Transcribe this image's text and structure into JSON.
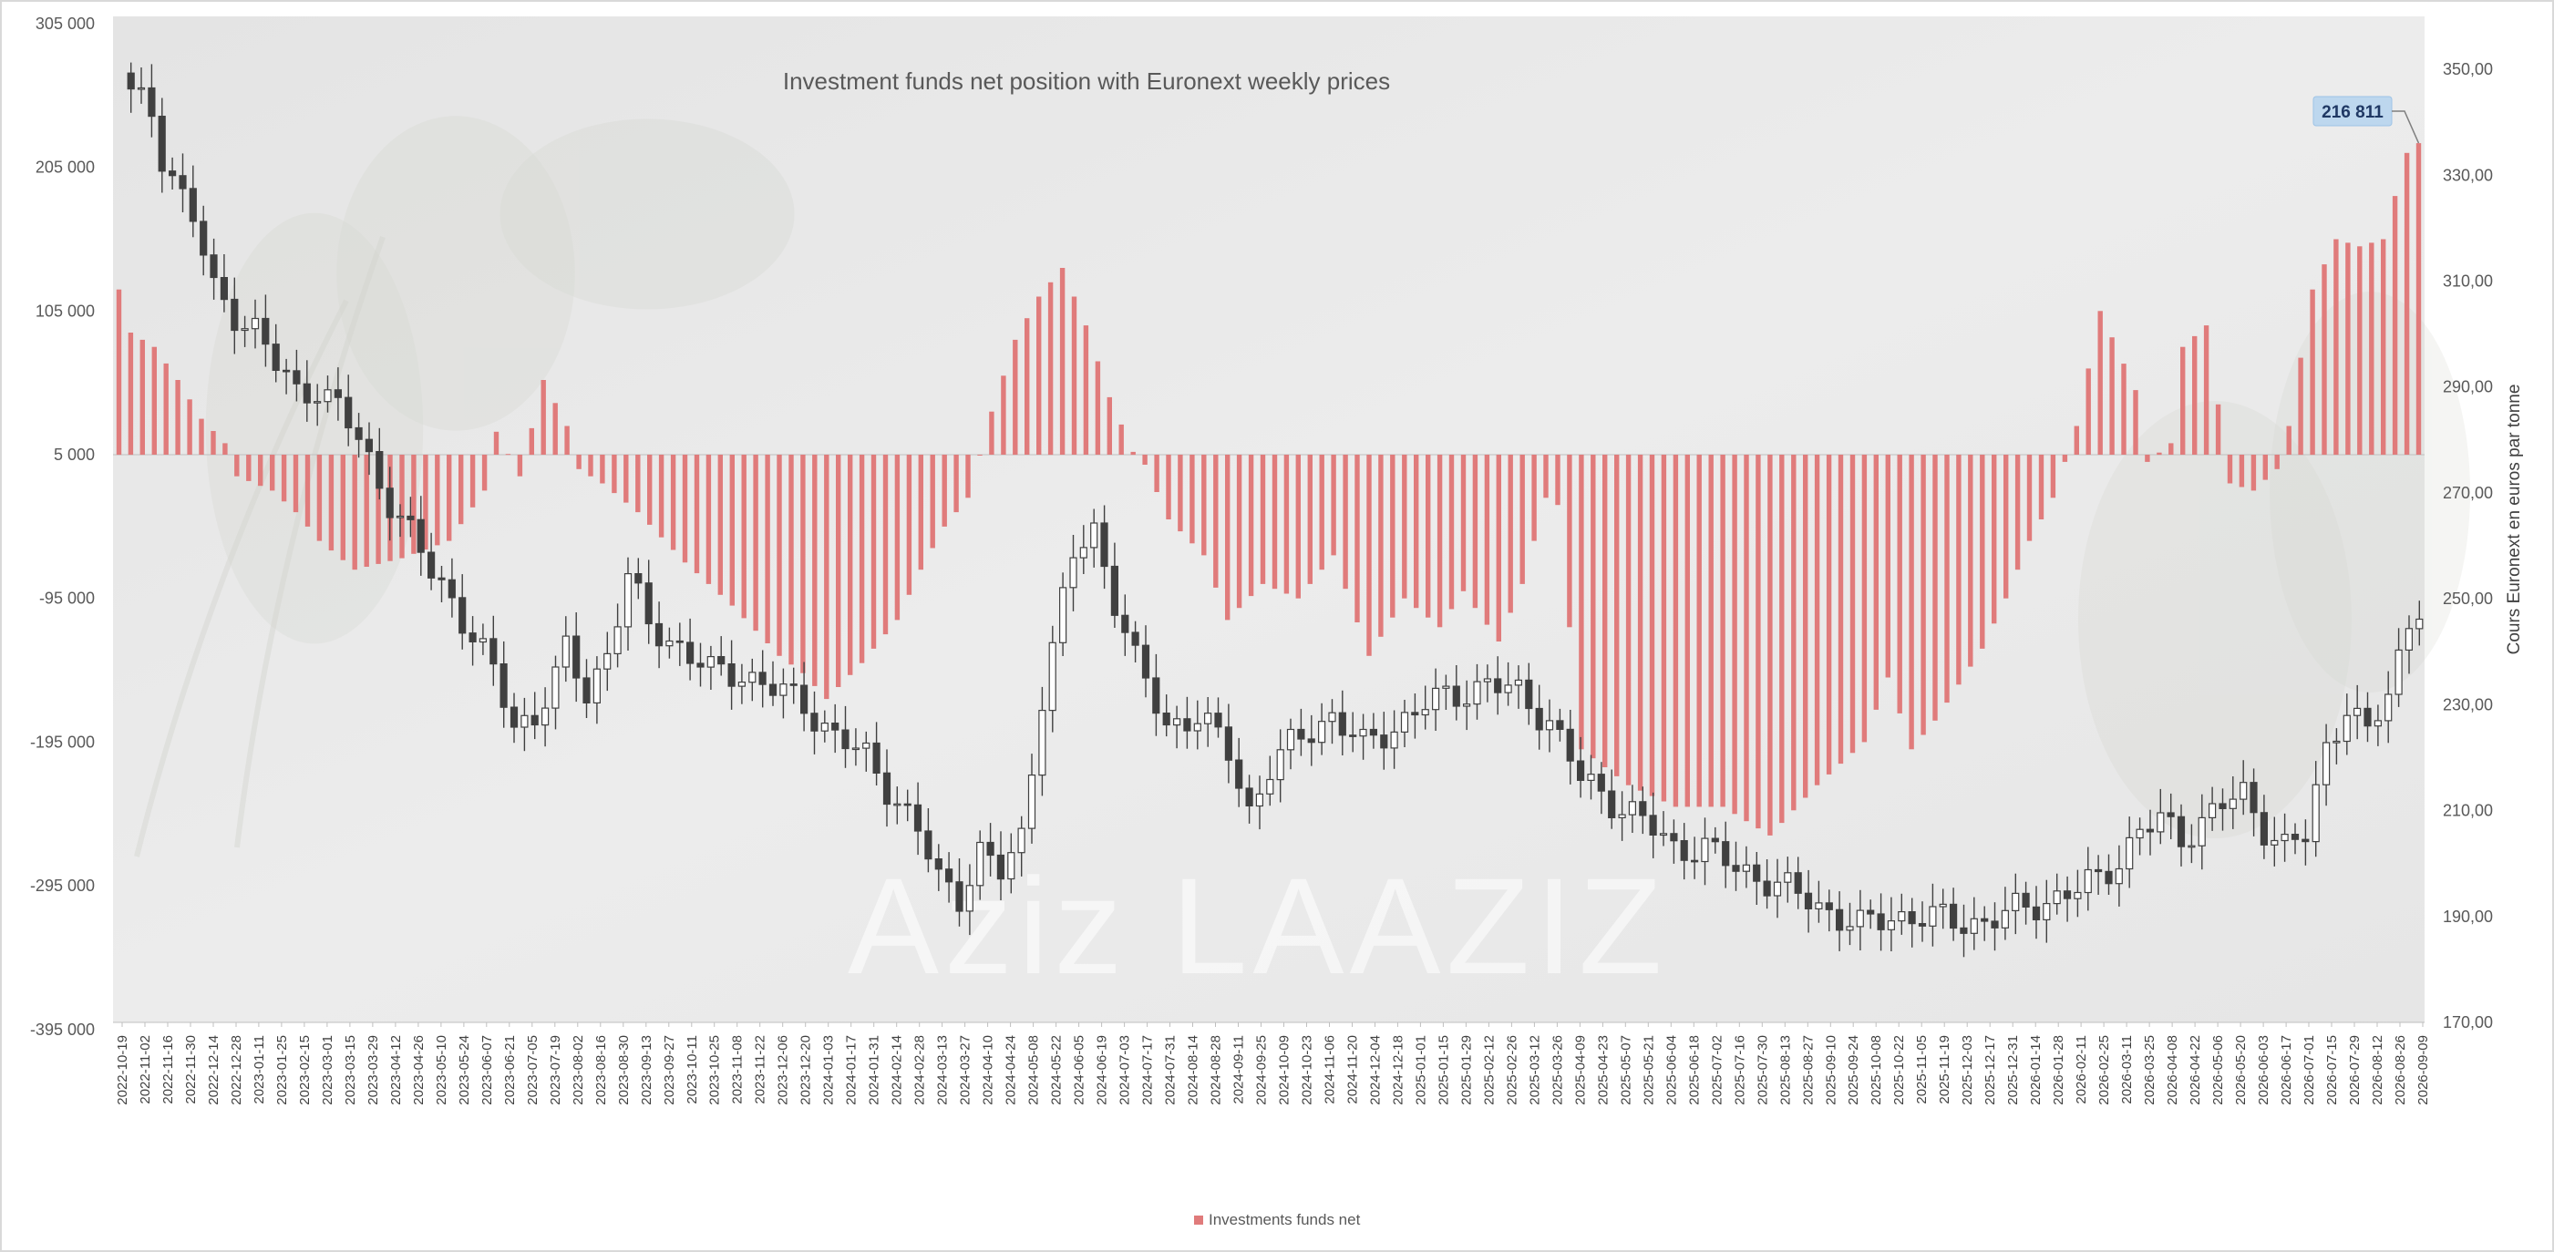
{
  "chart_data": {
    "type": "bar",
    "title": "Investment funds net position with Euronext weekly prices",
    "legend": {
      "position": "bottom",
      "entries": [
        "Investments funds net"
      ]
    },
    "series_colors": {
      "net_bars": "#e07b7b",
      "candle_down": "#404040",
      "candle_up": "#ffffff",
      "candle_line": "#404040"
    },
    "y_left": {
      "ticks": [
        "305 000",
        "205 000",
        "105 000",
        "5 000",
        "-95 000",
        "-195 000",
        "-295 000",
        "-395 000"
      ],
      "range": [
        -395000,
        305000
      ]
    },
    "y_right": {
      "label": "Cours Euronext en euros par tonne",
      "ticks": [
        "350,00",
        "330,00",
        "310,00",
        "290,00",
        "270,00",
        "250,00",
        "230,00",
        "210,00",
        "190,00",
        "170,00"
      ],
      "range": [
        170,
        360
      ]
    },
    "x_labels": [
      "2022-10-19",
      "2022-11-02",
      "2022-11-16",
      "2022-11-30",
      "2022-12-14",
      "2022-12-28",
      "2023-01-11",
      "2023-01-25",
      "2023-02-15",
      "2023-03-01",
      "2023-03-15",
      "2023-03-29",
      "2023-04-12",
      "2023-04-26",
      "2023-05-10",
      "2023-05-24",
      "2023-06-07",
      "2023-06-21",
      "2023-07-05",
      "2023-07-19",
      "2023-08-02",
      "2023-08-16",
      "2023-08-30",
      "2023-09-13",
      "2023-09-27",
      "2023-10-11",
      "2023-10-25",
      "2023-11-08",
      "2023-11-22",
      "2023-12-06",
      "2023-12-20",
      "2024-01-03",
      "2024-01-17",
      "2024-01-31",
      "2024-02-14",
      "2024-02-28",
      "2024-03-13",
      "2024-03-27",
      "2024-04-10",
      "2024-04-24",
      "2024-05-08",
      "2024-05-22",
      "2024-06-05",
      "2024-06-19",
      "2024-07-03",
      "2024-07-17",
      "2024-07-31",
      "2024-08-14",
      "2024-08-28",
      "2024-09-11",
      "2024-09-25",
      "2024-10-09",
      "2024-10-23",
      "2024-11-06",
      "2024-11-20",
      "2024-12-04",
      "2024-12-18",
      "2025-01-01",
      "2025-01-15",
      "2025-01-29",
      "2025-02-12",
      "2025-02-26",
      "2025-03-12",
      "2025-03-26",
      "2025-04-09",
      "2025-04-23",
      "2025-05-07",
      "2025-05-21",
      "2025-06-04",
      "2025-06-18",
      "2025-07-02",
      "2025-07-16",
      "2025-07-30",
      "2025-08-13",
      "2025-08-27",
      "2025-09-10",
      "2025-09-24",
      "2025-10-08",
      "2025-10-22",
      "2025-11-05",
      "2025-11-19",
      "2025-12-03",
      "2025-12-17",
      "2025-12-31",
      "2026-01-14",
      "2026-01-28",
      "2026-02-11",
      "2026-02-25",
      "2026-03-11",
      "2026-03-25",
      "2026-04-08",
      "2026-04-22",
      "2026-05-06",
      "2026-05-20",
      "2026-06-03",
      "2026-06-17",
      "2026-07-01",
      "2026-07-15",
      "2026-07-29",
      "2026-08-12",
      "2026-08-26",
      "2026-09-09"
    ],
    "net_position_anchors": [
      [
        0,
        115000
      ],
      [
        1,
        85000
      ],
      [
        3,
        75000
      ],
      [
        5,
        52000
      ],
      [
        7,
        25000
      ],
      [
        9,
        8000
      ],
      [
        10,
        -15000
      ],
      [
        13,
        -25000
      ],
      [
        15,
        -40000
      ],
      [
        17,
        -60000
      ],
      [
        20,
        -80000
      ],
      [
        24,
        -72000
      ],
      [
        28,
        -60000
      ],
      [
        31,
        -25000
      ],
      [
        32,
        16000
      ],
      [
        34,
        -15000
      ],
      [
        36,
        52000
      ],
      [
        38,
        20000
      ],
      [
        39,
        -10000
      ],
      [
        41,
        -20000
      ],
      [
        44,
        -40000
      ],
      [
        48,
        -75000
      ],
      [
        52,
        -105000
      ],
      [
        56,
        -140000
      ],
      [
        58,
        -152000
      ],
      [
        60,
        -170000
      ],
      [
        63,
        -145000
      ],
      [
        66,
        -115000
      ],
      [
        68,
        -80000
      ],
      [
        70,
        -50000
      ],
      [
        72,
        -30000
      ],
      [
        74,
        30000
      ],
      [
        76,
        80000
      ],
      [
        78,
        110000
      ],
      [
        80,
        130000
      ],
      [
        82,
        90000
      ],
      [
        84,
        40000
      ],
      [
        86,
        2000
      ],
      [
        87,
        -7000
      ],
      [
        89,
        -45000
      ],
      [
        92,
        -70000
      ],
      [
        94,
        -115000
      ],
      [
        97,
        -90000
      ],
      [
        100,
        -100000
      ],
      [
        103,
        -70000
      ],
      [
        106,
        -140000
      ],
      [
        109,
        -100000
      ],
      [
        112,
        -120000
      ],
      [
        114,
        -95000
      ],
      [
        117,
        -130000
      ],
      [
        119,
        -90000
      ],
      [
        121,
        -30000
      ],
      [
        122,
        -35000
      ],
      [
        124,
        -205000
      ],
      [
        128,
        -230000
      ],
      [
        132,
        -245000
      ],
      [
        136,
        -245000
      ],
      [
        140,
        -265000
      ],
      [
        144,
        -230000
      ],
      [
        148,
        -200000
      ],
      [
        150,
        -155000
      ],
      [
        152,
        -205000
      ],
      [
        154,
        -185000
      ],
      [
        156,
        -160000
      ],
      [
        158,
        -135000
      ],
      [
        160,
        -100000
      ],
      [
        162,
        -60000
      ],
      [
        164,
        -30000
      ],
      [
        166,
        20000
      ],
      [
        167,
        60000
      ],
      [
        168,
        100000
      ],
      [
        171,
        45000
      ],
      [
        172,
        -5000
      ],
      [
        174,
        8000
      ],
      [
        175,
        75000
      ],
      [
        177,
        90000
      ],
      [
        178,
        35000
      ],
      [
        179,
        -20000
      ],
      [
        181,
        -25000
      ],
      [
        183,
        -10000
      ],
      [
        184,
        20000
      ],
      [
        186,
        115000
      ],
      [
        188,
        150000
      ],
      [
        190,
        145000
      ],
      [
        192,
        150000
      ],
      [
        194,
        210000
      ],
      [
        195,
        216811
      ]
    ],
    "price_anchors": [
      [
        0,
        345
      ],
      [
        2,
        342
      ],
      [
        3,
        334
      ],
      [
        6,
        322
      ],
      [
        8,
        308
      ],
      [
        10,
        304
      ],
      [
        12,
        301
      ],
      [
        14,
        294
      ],
      [
        16,
        289
      ],
      [
        18,
        290
      ],
      [
        20,
        286
      ],
      [
        22,
        280
      ],
      [
        24,
        272
      ],
      [
        27,
        262
      ],
      [
        29,
        255
      ],
      [
        31,
        250
      ],
      [
        33,
        243
      ],
      [
        35,
        236
      ],
      [
        37,
        226
      ],
      [
        39,
        228
      ],
      [
        41,
        235
      ],
      [
        42,
        240
      ],
      [
        44,
        232
      ],
      [
        46,
        240
      ],
      [
        48,
        254
      ],
      [
        50,
        245
      ],
      [
        53,
        241
      ],
      [
        56,
        236
      ],
      [
        59,
        236
      ],
      [
        62,
        233
      ],
      [
        65,
        230
      ],
      [
        68,
        224
      ],
      [
        71,
        220
      ],
      [
        74,
        212
      ],
      [
        76,
        206
      ],
      [
        78,
        197
      ],
      [
        80,
        194
      ],
      [
        82,
        202
      ],
      [
        84,
        198
      ],
      [
        86,
        205
      ],
      [
        88,
        232
      ],
      [
        91,
        258
      ],
      [
        93,
        263
      ],
      [
        95,
        250
      ],
      [
        97,
        238
      ],
      [
        100,
        226
      ],
      [
        103,
        228
      ],
      [
        106,
        221
      ],
      [
        108,
        210
      ],
      [
        110,
        218
      ],
      [
        113,
        224
      ],
      [
        116,
        228
      ],
      [
        119,
        222
      ],
      [
        122,
        226
      ],
      [
        125,
        230
      ],
      [
        128,
        232
      ],
      [
        131,
        234
      ],
      [
        134,
        232
      ],
      [
        137,
        227
      ],
      [
        140,
        216
      ],
      [
        143,
        212
      ],
      [
        146,
        208
      ],
      [
        149,
        203
      ],
      [
        152,
        203
      ],
      [
        155,
        199
      ],
      [
        158,
        197
      ],
      [
        161,
        194
      ],
      [
        164,
        191
      ],
      [
        167,
        188
      ],
      [
        170,
        190
      ],
      [
        173,
        190
      ],
      [
        176,
        189
      ],
      [
        179,
        189
      ],
      [
        182,
        191
      ],
      [
        185,
        193
      ],
      [
        188,
        195
      ],
      [
        190,
        197
      ],
      [
        192,
        201
      ],
      [
        194,
        206
      ],
      [
        196,
        208
      ],
      [
        198,
        205
      ],
      [
        200,
        208
      ],
      [
        202,
        211
      ],
      [
        204,
        213
      ],
      [
        206,
        207
      ],
      [
        208,
        203
      ],
      [
        210,
        205
      ],
      [
        212,
        222
      ],
      [
        214,
        230
      ],
      [
        216,
        224
      ],
      [
        218,
        232
      ],
      [
        220,
        246
      ],
      [
        221,
        249
      ]
    ],
    "callout": {
      "label": "216 811",
      "target": "2026-09-09"
    },
    "watermark": "Aziz LAAZIZ"
  }
}
